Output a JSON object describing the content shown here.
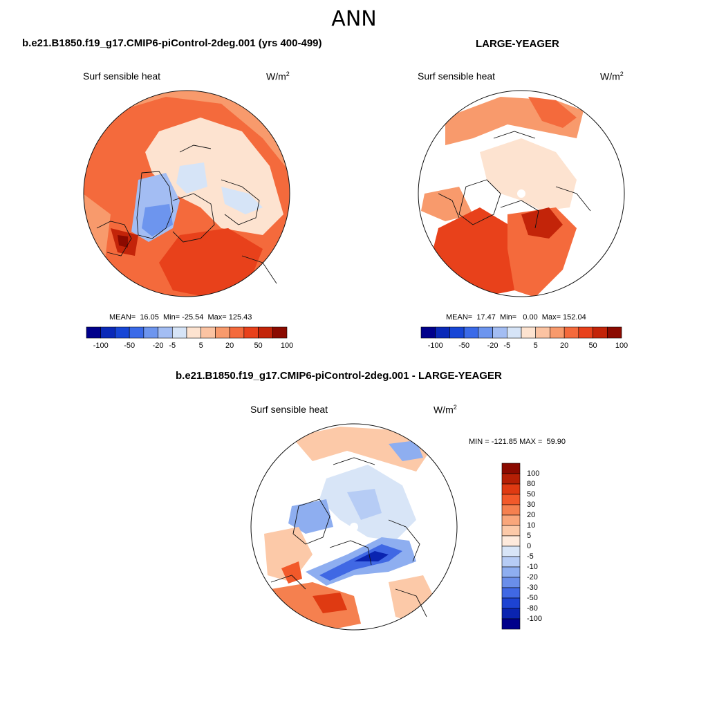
{
  "title": "ANN",
  "panels": [
    {
      "case_title": "b.e21.B1850.f19_g17.CMIP6-piControl-2deg.001 (yrs 400-499)",
      "variable": "Surf sensible heat",
      "units": "W/m",
      "units_sup": "2",
      "stats": "MEAN=  16.05  Min= -25.54  Max= 125.43"
    },
    {
      "case_title": "LARGE-YEAGER",
      "variable": "Surf sensible heat",
      "units": "W/m",
      "units_sup": "2",
      "stats": "MEAN=  17.47  Min=   0.00  Max= 152.04"
    },
    {
      "case_title": "b.e21.B1850.f19_g17.CMIP6-piControl-2deg.001 - LARGE-YEAGER",
      "variable": "Surf sensible heat",
      "units": "W/m",
      "units_sup": "2",
      "stats": "MIN = -121.85 MAX =  59.90"
    }
  ],
  "colorbar_top": {
    "ticks": [
      "-100",
      "-50",
      "-20",
      "-5",
      "5",
      "20",
      "50",
      "100"
    ],
    "colors": [
      "#00008b",
      "#0a29b8",
      "#1746d6",
      "#3a6ae8",
      "#6d95ee",
      "#a3bdf3",
      "#d6e4f7",
      "#fde3d0",
      "#fbc3a2",
      "#f89a6c",
      "#f46a3c",
      "#e8411b",
      "#c32409",
      "#8b0a00"
    ]
  },
  "colorbar_diff": {
    "labels": [
      "100",
      "80",
      "50",
      "30",
      "20",
      "10",
      "5",
      "0",
      "-5",
      "-10",
      "-20",
      "-30",
      "-50",
      "-80",
      "-100"
    ],
    "colors": [
      "#8b0a00",
      "#b51f05",
      "#df3a12",
      "#f2592a",
      "#f5804f",
      "#f9a67b",
      "#fcc9a8",
      "#feeadc",
      "#d8e5f7",
      "#b6ccf5",
      "#8eaef0",
      "#6a8eea",
      "#4068e4",
      "#1d43d2",
      "#0a24b0",
      "#00008b"
    ]
  }
}
